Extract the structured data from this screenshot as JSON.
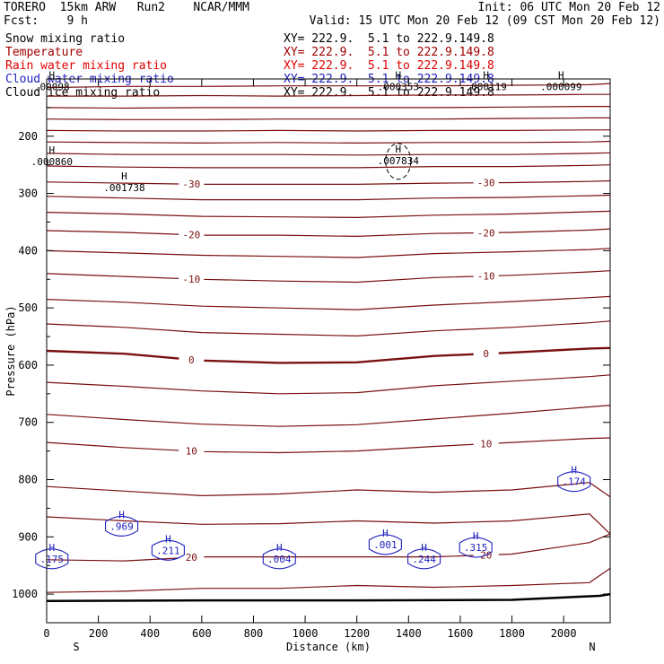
{
  "header": {
    "model": "TORERO  15km ARW   Run2    NCAR/MMM",
    "init": "Init: 06 UTC Mon 20 Feb 12",
    "fcst": "Fcst:    9 h",
    "valid": "Valid: 15 UTC Mon 20 Feb 12 (09 CST Mon 20 Feb 12)"
  },
  "legend": [
    {
      "name": "Snow mixing ratio",
      "range": "XY= 222.9.  5.1 to 222.9.149.8",
      "color": "#000000"
    },
    {
      "name": "Temperature",
      "range": "XY= 222.9.  5.1 to 222.9.149.8",
      "color": "#a00000"
    },
    {
      "name": "Rain water mixing ratio",
      "range": "XY= 222.9.  5.1 to 222.9.149.8",
      "color": "#e00000"
    },
    {
      "name": "Cloud water mixing ratio",
      "range": "XY= 222.9.  5.1 to 222.9.149.8",
      "color": "#2020c0"
    },
    {
      "name": "Cloud ice mixing ratio",
      "range": "XY= 222.9.  5.1 to 222.9.149.8",
      "color": "#000000"
    }
  ],
  "chart_data": {
    "type": "line",
    "xlabel": "Distance (km)",
    "ylabel": "Pressure (hPa)",
    "xlim": [
      0,
      2180
    ],
    "ylim": [
      1050,
      100
    ],
    "x_ticks": [
      0,
      200,
      400,
      600,
      800,
      1000,
      1200,
      1400,
      1600,
      1800,
      2000
    ],
    "y_ticks": [
      200,
      300,
      400,
      500,
      600,
      700,
      800,
      900,
      1000
    ],
    "x_ends": {
      "left": "S",
      "right": "N"
    },
    "isotherm_color": "#7a1010",
    "cloud_color": "#2020c0",
    "profile_x": [
      0,
      300,
      600,
      900,
      1200,
      1500,
      1800,
      2100,
      2180
    ],
    "isotherms": [
      {
        "dy": [
          0,
          0,
          0,
          0,
          0,
          0,
          0,
          0,
          0
        ]
      },
      {
        "dy": [
          0,
          0,
          0,
          0,
          0,
          0,
          0,
          0,
          0
        ]
      },
      {
        "dy": [
          0,
          0,
          0,
          0,
          0,
          0,
          0,
          0,
          0
        ]
      },
      {
        "dy": [
          0,
          0,
          0,
          0,
          0,
          0,
          0,
          0,
          0
        ]
      },
      {
        "dy": [
          0,
          0,
          0,
          0,
          0,
          0,
          0,
          0,
          0
        ]
      },
      {
        "dy": [
          0,
          0,
          0,
          0,
          0,
          0,
          0,
          0,
          0
        ]
      }
    ],
    "temperature_lines": [
      {
        "p": [
          115,
          113,
          113,
          112,
          112,
          112,
          111,
          110,
          108
        ]
      },
      {
        "p": [
          130,
          130,
          129,
          130,
          129,
          128,
          128,
          127,
          127
        ]
      },
      {
        "p": [
          150,
          151,
          150,
          150,
          150,
          150,
          149,
          148,
          148
        ]
      },
      {
        "p": [
          170,
          171,
          171,
          170,
          170,
          170,
          169,
          168,
          168
        ]
      },
      {
        "p": [
          190,
          191,
          191,
          190,
          191,
          190,
          190,
          189,
          189
        ]
      },
      {
        "p": [
          210,
          211,
          212,
          211,
          212,
          211,
          211,
          210,
          209
        ]
      },
      {
        "p": [
          230,
          232,
          232,
          232,
          233,
          232,
          232,
          230,
          229
        ]
      },
      {
        "p": [
          252,
          254,
          255,
          255,
          255,
          253,
          253,
          251,
          250
        ]
      },
      {
        "p": [
          280,
          282,
          284,
          284,
          284,
          282,
          281,
          279,
          278
        ],
        "label": "-30"
      },
      {
        "p": [
          305,
          308,
          311,
          311,
          311,
          308,
          307,
          304,
          303
        ]
      },
      {
        "p": [
          333,
          336,
          340,
          341,
          342,
          338,
          336,
          332,
          331
        ]
      },
      {
        "p": [
          365,
          368,
          373,
          373,
          375,
          370,
          368,
          364,
          362
        ],
        "label": "-20"
      },
      {
        "p": [
          400,
          404,
          408,
          410,
          412,
          405,
          402,
          398,
          396
        ]
      },
      {
        "p": [
          440,
          445,
          450,
          453,
          455,
          447,
          443,
          437,
          435
        ],
        "label": "-10"
      },
      {
        "p": [
          485,
          490,
          497,
          500,
          503,
          495,
          489,
          482,
          480
        ]
      },
      {
        "p": [
          528,
          534,
          543,
          546,
          549,
          540,
          534,
          526,
          523
        ]
      },
      {
        "p": [
          575,
          580,
          592,
          596,
          595,
          584,
          578,
          571,
          570
        ],
        "label": "0"
      },
      {
        "p": [
          630,
          637,
          645,
          650,
          648,
          636,
          628,
          620,
          617
        ]
      },
      {
        "p": [
          686,
          695,
          703,
          707,
          704,
          694,
          684,
          673,
          670
        ]
      },
      {
        "p": [
          735,
          744,
          751,
          753,
          750,
          742,
          735,
          728,
          727
        ],
        "label": "10"
      },
      {
        "p": [
          812,
          820,
          828,
          825,
          818,
          822,
          818,
          805,
          830
        ]
      },
      {
        "p": [
          865,
          872,
          878,
          877,
          872,
          876,
          872,
          860,
          895
        ]
      },
      {
        "p": [
          940,
          942,
          935,
          935,
          935,
          935,
          930,
          910,
          895
        ],
        "label": "20"
      },
      {
        "p": [
          997,
          995,
          990,
          990,
          985,
          988,
          985,
          980,
          955
        ]
      }
    ],
    "ground": {
      "x": [
        0,
        600,
        1200,
        1800,
        2140,
        2180
      ],
      "p": [
        1012,
        1011,
        1011,
        1010,
        1003,
        1000
      ]
    },
    "maxima": [
      {
        "x": 300,
        "p": 291,
        "value": ".001738",
        "series": "snow"
      },
      {
        "x": 1360,
        "p": 244,
        "value": ".007834",
        "series": "snow"
      },
      {
        "x": 1360,
        "p": 115,
        "value": ".000353",
        "series": "ice"
      },
      {
        "x": 1700,
        "p": 115,
        "value": ".000119",
        "series": "ice"
      },
      {
        "x": 1990,
        "p": 115,
        "value": ".000099",
        "series": "ice"
      },
      {
        "x": 20,
        "p": 115,
        "value": ".00098",
        "series": "ice"
      },
      {
        "x": 20,
        "p": 246,
        "value": ".000860",
        "series": "snow"
      },
      {
        "x": 290,
        "p": 883,
        "value": ".969",
        "series": "cloud"
      },
      {
        "x": 20,
        "p": 940,
        "value": ".175",
        "series": "cloud"
      },
      {
        "x": 470,
        "p": 925,
        "value": ".211",
        "series": "cloud"
      },
      {
        "x": 900,
        "p": 940,
        "value": ".004",
        "series": "cloud"
      },
      {
        "x": 1310,
        "p": 915,
        "value": ".001",
        "series": "cloud"
      },
      {
        "x": 1460,
        "p": 940,
        "value": ".244",
        "series": "cloud"
      },
      {
        "x": 1660,
        "p": 920,
        "value": ".315",
        "series": "cloud"
      },
      {
        "x": 2040,
        "p": 805,
        "value": ".174",
        "series": "cloud"
      }
    ]
  }
}
